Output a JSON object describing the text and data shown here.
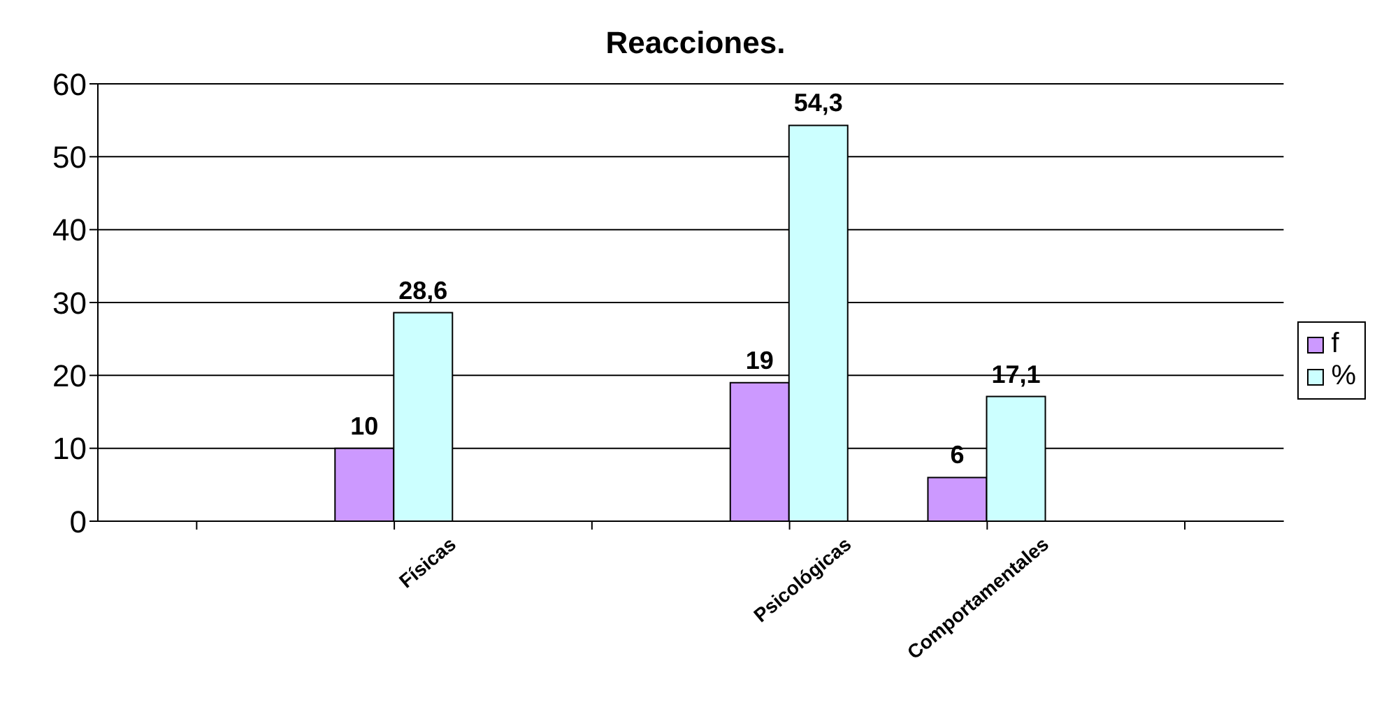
{
  "chart_data": {
    "type": "bar",
    "title": "Reacciones.",
    "categories": [
      null,
      "Físicas",
      null,
      "Psicológicas",
      "Comportamentales",
      null
    ],
    "series": [
      {
        "name": "f",
        "color": "#cc99ff",
        "values": [
          null,
          10,
          null,
          19,
          6,
          null
        ],
        "value_labels": [
          null,
          "10",
          null,
          "19",
          "6",
          null
        ]
      },
      {
        "name": "%",
        "color": "#ccffff",
        "values": [
          null,
          28.6,
          null,
          54.3,
          17.1,
          null
        ],
        "value_labels": [
          null,
          "28,6",
          null,
          "54,3",
          "17,1",
          null
        ]
      }
    ],
    "ylim": [
      0,
      60
    ],
    "yticks": [
      0,
      10,
      20,
      30,
      40,
      50,
      60
    ],
    "grid": "y",
    "legend": "right"
  }
}
